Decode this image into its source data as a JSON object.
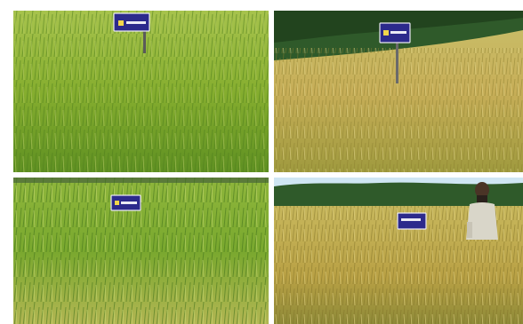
{
  "collage": {
    "panels": [
      {
        "scene": "green-rice-field",
        "sign": "blue-signboard"
      },
      {
        "scene": "golden-rice-field-with-treeline",
        "sign": "blue-signboard"
      },
      {
        "scene": "green-rice-field",
        "sign": "blue-signboard"
      },
      {
        "scene": "golden-rice-field-with-farmer",
        "sign": "blue-signboard"
      }
    ],
    "colors": {
      "green_field": "#7fae2c",
      "golden_field": "#c9b35a",
      "sky": "#cfe6f3",
      "trees": "#2f5a2a",
      "sign_bg": "#2c2a8c",
      "sign_text": "#ffffff"
    }
  }
}
